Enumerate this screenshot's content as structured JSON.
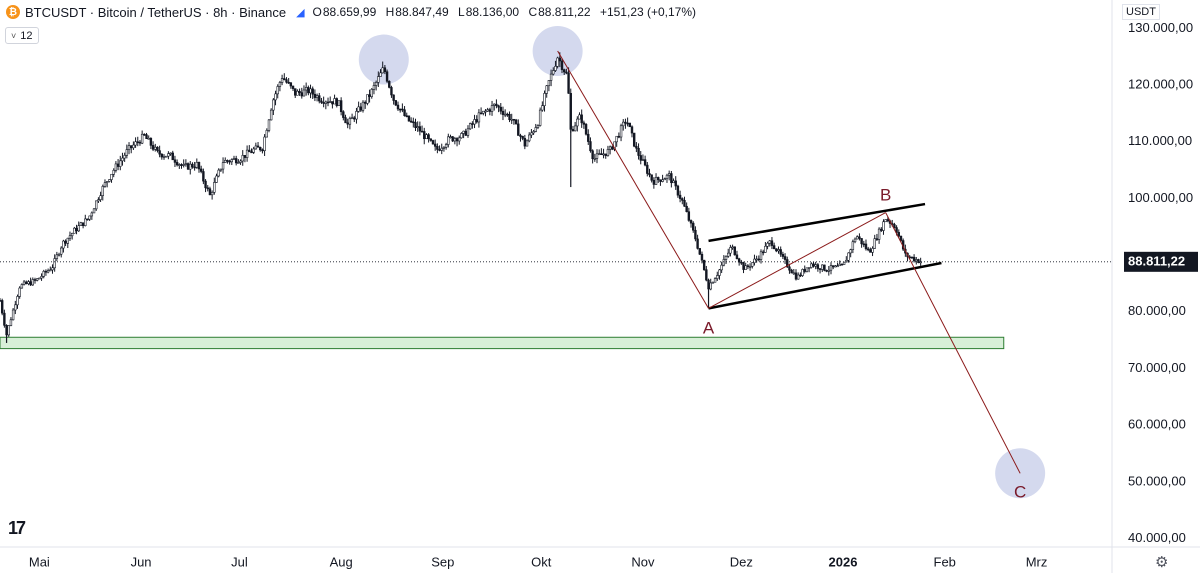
{
  "header": {
    "symbol": "BTCUSDT",
    "title": "BTCUSDT · Bitcoin / TetherUS · 8h · Binance",
    "open_label": "O",
    "open": "88.659,99",
    "high_label": "H",
    "high": "88.847,49",
    "low_label": "L",
    "low": "88.136,00",
    "close_label": "C",
    "close": "88.811,22",
    "change": "+151,23 (+0,17%)"
  },
  "indicator_toggle": {
    "count": "12",
    "chevron_icon": "chevron-down-icon"
  },
  "price_axis": {
    "currency": "USDT",
    "last_price_label": "88.811,22",
    "last_price_color": "#131722"
  },
  "colors": {
    "candle": "#131722",
    "wave_line": "#8b1a1a",
    "wave_label": "#7a1a2a",
    "channel": "#000000",
    "circle_fill": "#c5cce8",
    "zone_fill": "#d8efd8",
    "zone_border": "#2e7d32"
  },
  "chart_data": {
    "type": "candlestick",
    "symbol": "BTCUSDT",
    "interval": "8h",
    "exchange": "Binance",
    "y_axis": {
      "ticks": [
        "130.000,00",
        "120.000,00",
        "110.000,00",
        "100.000,00",
        "80.000,00",
        "70.000,00",
        "60.000,00",
        "50.000,00",
        "40.000,00"
      ],
      "tick_values": [
        130000,
        120000,
        110000,
        100000,
        80000,
        70000,
        60000,
        50000,
        40000
      ],
      "range": [
        38500,
        135000
      ]
    },
    "x_axis": {
      "labels": [
        "Mai",
        "Jun",
        "Jul",
        "Aug",
        "Sep",
        "Okt",
        "Nov",
        "Dez",
        "2026",
        "Feb",
        "Mrz"
      ],
      "bold_labels": [
        "2026"
      ],
      "range": [
        "2025-04-19",
        "2026-03-24"
      ]
    },
    "price_path": [
      [
        "2025-04-19",
        82000
      ],
      [
        "2025-04-21",
        76000
      ],
      [
        "2025-04-25",
        84500
      ],
      [
        "2025-04-30",
        85500
      ],
      [
        "2025-05-05",
        88000
      ],
      [
        "2025-05-08",
        92000
      ],
      [
        "2025-05-12",
        94500
      ],
      [
        "2025-05-16",
        96500
      ],
      [
        "2025-05-20",
        101500
      ],
      [
        "2025-05-23",
        104500
      ],
      [
        "2025-05-28",
        108500
      ],
      [
        "2025-06-02",
        111000
      ],
      [
        "2025-06-06",
        108000
      ],
      [
        "2025-06-10",
        107500
      ],
      [
        "2025-06-14",
        105500
      ],
      [
        "2025-06-18",
        106000
      ],
      [
        "2025-06-22",
        100500
      ],
      [
        "2025-06-26",
        106500
      ],
      [
        "2025-07-01",
        107000
      ],
      [
        "2025-07-05",
        108500
      ],
      [
        "2025-07-08",
        109000
      ],
      [
        "2025-07-11",
        117000
      ],
      [
        "2025-07-14",
        121500
      ],
      [
        "2025-07-18",
        118500
      ],
      [
        "2025-07-22",
        119000
      ],
      [
        "2025-07-26",
        117500
      ],
      [
        "2025-07-31",
        117000
      ],
      [
        "2025-08-03",
        113000
      ],
      [
        "2025-08-07",
        116000
      ],
      [
        "2025-08-10",
        118500
      ],
      [
        "2025-08-14",
        123000
      ],
      [
        "2025-08-17",
        117500
      ],
      [
        "2025-08-21",
        114000
      ],
      [
        "2025-08-25",
        112000
      ],
      [
        "2025-08-30",
        108500
      ],
      [
        "2025-09-03",
        110500
      ],
      [
        "2025-09-07",
        111000
      ],
      [
        "2025-09-12",
        114500
      ],
      [
        "2025-09-17",
        116500
      ],
      [
        "2025-09-22",
        114000
      ],
      [
        "2025-09-26",
        109500
      ],
      [
        "2025-09-30",
        113500
      ],
      [
        "2025-10-03",
        120000
      ],
      [
        "2025-10-06",
        125000
      ],
      [
        "2025-10-09",
        121500
      ],
      [
        "2025-10-10",
        112000
      ],
      [
        "2025-10-13",
        114500
      ],
      [
        "2025-10-17",
        107000
      ],
      [
        "2025-10-22",
        108500
      ],
      [
        "2025-10-27",
        114000
      ],
      [
        "2025-10-30",
        108500
      ],
      [
        "2025-11-04",
        103000
      ],
      [
        "2025-11-09",
        104000
      ],
      [
        "2025-11-13",
        99500
      ],
      [
        "2025-11-17",
        93000
      ],
      [
        "2025-11-21",
        84500
      ],
      [
        "2025-11-24",
        87000
      ],
      [
        "2025-11-28",
        91500
      ],
      [
        "2025-12-02",
        87500
      ],
      [
        "2025-12-06",
        89500
      ],
      [
        "2025-12-10",
        92500
      ],
      [
        "2025-12-14",
        89000
      ],
      [
        "2025-12-18",
        86000
      ],
      [
        "2025-12-22",
        88500
      ],
      [
        "2025-12-27",
        87500
      ],
      [
        "2026-01-01",
        88000
      ],
      [
        "2026-01-05",
        93500
      ],
      [
        "2026-01-09",
        90500
      ],
      [
        "2026-01-14",
        96500
      ],
      [
        "2026-01-17",
        95000
      ],
      [
        "2026-01-20",
        90000
      ],
      [
        "2026-01-22",
        89500
      ],
      [
        "2026-01-25",
        88811
      ]
    ],
    "spikes": [
      {
        "date": "2025-10-10",
        "low": 102000
      },
      {
        "date": "2025-04-21",
        "low": 74500
      },
      {
        "date": "2025-11-21",
        "low": 80600
      }
    ],
    "last_price": 88811.22,
    "annotations": {
      "support_zone": {
        "from": "2025-04-19",
        "to": "2026-02-19",
        "low": 73500,
        "high": 75500
      },
      "waves": [
        {
          "label": "",
          "date": "2025-10-06",
          "price": 126000
        },
        {
          "label": "A",
          "date": "2025-11-21",
          "price": 80600
        },
        {
          "label": "B",
          "date": "2026-01-14",
          "price": 97500
        },
        {
          "label": "C",
          "date": "2026-02-24",
          "price": 51500
        }
      ],
      "wave_labels": [
        {
          "text": "A",
          "date": "2025-11-21",
          "price": 77000
        },
        {
          "text": "B",
          "date": "2026-01-14",
          "price": 100400
        },
        {
          "text": "C",
          "date": "2026-02-24",
          "price": 48000
        }
      ],
      "channel_upper": [
        [
          "2025-11-21",
          92500
        ],
        [
          "2026-01-26",
          99000
        ]
      ],
      "channel_lower": [
        [
          "2025-11-21",
          80600
        ],
        [
          "2026-01-31",
          88600
        ]
      ],
      "circles": [
        {
          "date": "2025-08-14",
          "price": 124500
        },
        {
          "date": "2025-10-06",
          "price": 126000
        },
        {
          "date": "2026-02-24",
          "price": 51500
        }
      ]
    }
  }
}
